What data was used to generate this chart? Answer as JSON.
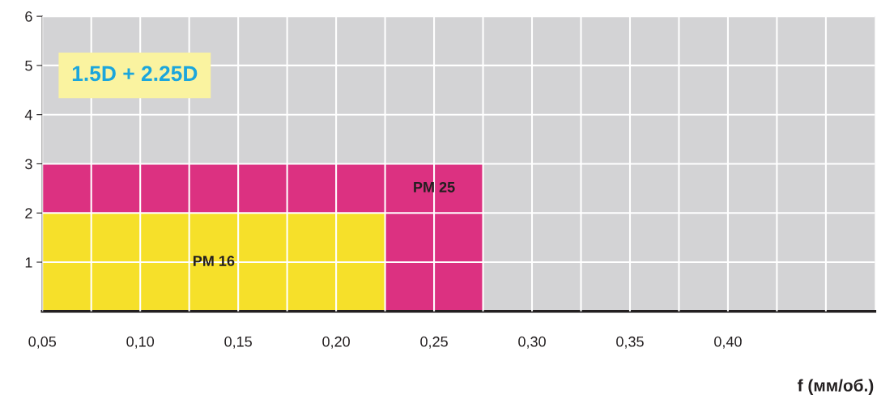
{
  "chart_data": {
    "type": "area",
    "title": "1.5D + 2.25D",
    "xlabel": "f (мм/об.)",
    "series": [
      {
        "name": "PM 25",
        "color": "#dc3181",
        "x": [
          0.05,
          0.275
        ],
        "values": [
          3,
          3
        ]
      },
      {
        "name": "PM 16",
        "color": "#f6e02a",
        "x": [
          0.05,
          0.225
        ],
        "values": [
          2,
          2
        ]
      }
    ],
    "xlim": [
      0.05,
      0.475
    ],
    "xticks": [
      {
        "value": 0.05,
        "label": "0,05"
      },
      {
        "value": 0.075,
        "label": null
      },
      {
        "value": 0.1,
        "label": "0,10"
      },
      {
        "value": 0.125,
        "label": null
      },
      {
        "value": 0.15,
        "label": "0,15"
      },
      {
        "value": 0.175,
        "label": null
      },
      {
        "value": 0.2,
        "label": "0,20"
      },
      {
        "value": 0.225,
        "label": null
      },
      {
        "value": 0.25,
        "label": "0,25"
      },
      {
        "value": 0.275,
        "label": null
      },
      {
        "value": 0.3,
        "label": "0,30"
      },
      {
        "value": 0.325,
        "label": null
      },
      {
        "value": 0.35,
        "label": "0,35"
      },
      {
        "value": 0.375,
        "label": null
      },
      {
        "value": 0.4,
        "label": "0,40"
      },
      {
        "value": 0.425,
        "label": null
      },
      {
        "value": 0.45,
        "label": null
      }
    ],
    "ylim": [
      0,
      6
    ],
    "yticks": [
      1,
      2,
      3,
      4,
      5,
      6
    ],
    "grid": true
  }
}
